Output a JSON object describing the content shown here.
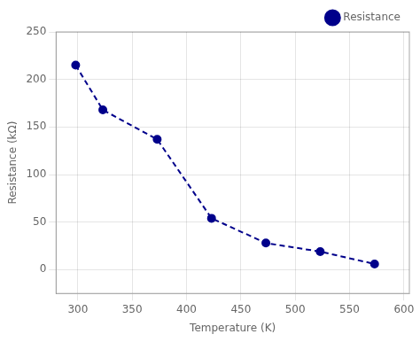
{
  "chart_data": {
    "type": "line",
    "x": [
      298,
      323,
      373,
      423,
      473,
      523,
      573
    ],
    "series": [
      {
        "name": "Resistance",
        "color": "#00008B",
        "values": [
          215,
          168,
          137,
          54,
          28,
          19,
          6
        ],
        "marker": "o",
        "line_style": "dashed"
      }
    ],
    "xlabel": "Temperature (K)",
    "ylabel": "Resistance (kΩ)",
    "xlim": [
      280,
      605
    ],
    "ylim": [
      -25,
      250
    ],
    "xticks": [
      300,
      350,
      400,
      450,
      500,
      550,
      600
    ],
    "yticks": [
      0,
      50,
      100,
      150,
      200,
      250
    ],
    "grid": true,
    "legend": "upper right"
  }
}
